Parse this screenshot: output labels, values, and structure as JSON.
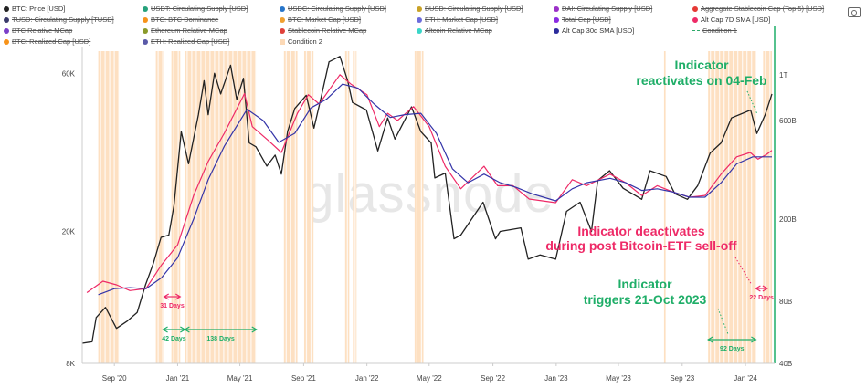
{
  "legend": [
    {
      "label": "BTC: Price [USD]",
      "color": "#222222",
      "shape": "dot",
      "active": true
    },
    {
      "label": "USDT: Circulating Supply [USD]",
      "color": "#26a17b",
      "shape": "dot",
      "active": false
    },
    {
      "label": "USDC: Circulating Supply [USD]",
      "color": "#2775ca",
      "shape": "dot",
      "active": false
    },
    {
      "label": "BUSD: Circulating Supply [USD]",
      "color": "#c9a227",
      "shape": "dot",
      "active": false
    },
    {
      "label": "DAI: Circulating Supply [USD]",
      "color": "#9b30c8",
      "shape": "dot",
      "active": false
    },
    {
      "label": "Aggregate Stablecoin Cap (Top 5) [USD]",
      "color": "#e53935",
      "shape": "dot",
      "active": false
    },
    {
      "label": "TUSD: Circulating Supply [TUSD]",
      "color": "#3a3a6a",
      "shape": "dot",
      "active": false
    },
    {
      "label": "BTC: BTC Dominance",
      "color": "#f7931a",
      "shape": "dot",
      "active": false
    },
    {
      "label": "BTC: Market Cap [USD]",
      "color": "#f0a030",
      "shape": "dot",
      "active": false
    },
    {
      "label": "ETH: Market Cap [USD]",
      "color": "#6c6cdc",
      "shape": "dot",
      "active": false
    },
    {
      "label": "Total Cap [USD]",
      "color": "#8a2be2",
      "shape": "dot",
      "active": false
    },
    {
      "label": "Alt Cap 7D SMA [USD]",
      "color": "#ee2a67",
      "shape": "dot",
      "active": true
    },
    {
      "label": "BTC Relative MCap",
      "color": "#7b3fc8",
      "shape": "dot",
      "active": false
    },
    {
      "label": "Ethereum Relative MCap",
      "color": "#8a9a2a",
      "shape": "dot",
      "active": false
    },
    {
      "label": "Stablecoin Relative MCap",
      "color": "#e0413a",
      "shape": "dot",
      "active": false
    },
    {
      "label": "Altcoin Relative MCap",
      "color": "#3ad6c8",
      "shape": "dot",
      "active": false
    },
    {
      "label": "Alt Cap 30d SMA [USD]",
      "color": "#2c2c9c",
      "shape": "dot",
      "active": true
    },
    {
      "label": "Condition 1",
      "color": "#2eaa6a",
      "shape": "dash",
      "active": false
    },
    {
      "label": "BTC: Realized Cap [USD]",
      "color": "#f7931a",
      "shape": "dot",
      "active": false
    },
    {
      "label": "ETH: Realized Cap [USD]",
      "color": "#5a5aa8",
      "shape": "dot",
      "active": false
    },
    {
      "label": "Condition 2",
      "color": "#fcd9b6",
      "shape": "square",
      "active": true
    }
  ],
  "chart_data": {
    "type": "line",
    "title": "",
    "watermark": "glassnode",
    "x_ticks": [
      "Sep '20",
      "Jan '21",
      "May '21",
      "Sep '21",
      "Jan '22",
      "May '22",
      "Sep '22",
      "Jan '23",
      "May '23",
      "Sep '23",
      "Jan '24"
    ],
    "x_range": [
      "2020-07-01",
      "2024-02-21"
    ],
    "y_left": {
      "scale": "log",
      "ticks": [
        "8K",
        "20K",
        "60K"
      ],
      "range": [
        8000,
        70000
      ]
    },
    "y_right": {
      "scale": "log",
      "ticks": [
        "40B",
        "80B",
        "200B",
        "600B",
        "1T"
      ],
      "range": [
        40,
        1300
      ],
      "unit": "B"
    },
    "series": [
      {
        "name": "BTC: Price [USD]",
        "axis": "left",
        "color": "#222222",
        "points": [
          [
            "2020-07-01",
            9200
          ],
          [
            "2020-07-20",
            9300
          ],
          [
            "2020-07-28",
            11000
          ],
          [
            "2020-08-15",
            11800
          ],
          [
            "2020-09-05",
            10200
          ],
          [
            "2020-09-25",
            10700
          ],
          [
            "2020-10-15",
            11400
          ],
          [
            "2020-10-31",
            13800
          ],
          [
            "2020-11-15",
            16000
          ],
          [
            "2020-11-30",
            19200
          ],
          [
            "2020-12-15",
            19500
          ],
          [
            "2020-12-25",
            24000
          ],
          [
            "2021-01-08",
            40000
          ],
          [
            "2021-01-22",
            32000
          ],
          [
            "2021-02-10",
            45000
          ],
          [
            "2021-02-21",
            57000
          ],
          [
            "2021-03-01",
            45000
          ],
          [
            "2021-03-13",
            60000
          ],
          [
            "2021-03-25",
            52000
          ],
          [
            "2021-04-13",
            63500
          ],
          [
            "2021-04-25",
            50000
          ],
          [
            "2021-05-08",
            58000
          ],
          [
            "2021-05-19",
            37000
          ],
          [
            "2021-06-01",
            36000
          ],
          [
            "2021-06-22",
            31500
          ],
          [
            "2021-07-08",
            34000
          ],
          [
            "2021-07-20",
            29800
          ],
          [
            "2021-08-01",
            40000
          ],
          [
            "2021-08-15",
            47000
          ],
          [
            "2021-09-06",
            51500
          ],
          [
            "2021-09-21",
            41000
          ],
          [
            "2021-10-05",
            51000
          ],
          [
            "2021-10-20",
            65000
          ],
          [
            "2021-11-10",
            67500
          ],
          [
            "2021-11-25",
            57000
          ],
          [
            "2021-12-04",
            49000
          ],
          [
            "2021-12-31",
            46500
          ],
          [
            "2022-01-22",
            35000
          ],
          [
            "2022-02-10",
            44000
          ],
          [
            "2022-02-24",
            38000
          ],
          [
            "2022-03-28",
            47500
          ],
          [
            "2022-04-15",
            40000
          ],
          [
            "2022-05-05",
            37000
          ],
          [
            "2022-05-12",
            29000
          ],
          [
            "2022-06-01",
            30000
          ],
          [
            "2022-06-18",
            19000
          ],
          [
            "2022-07-01",
            19500
          ],
          [
            "2022-08-13",
            24500
          ],
          [
            "2022-09-06",
            19000
          ],
          [
            "2022-09-15",
            20000
          ],
          [
            "2022-10-25",
            20500
          ],
          [
            "2022-11-08",
            16500
          ],
          [
            "2022-12-01",
            17000
          ],
          [
            "2022-12-31",
            16500
          ],
          [
            "2023-01-21",
            23000
          ],
          [
            "2023-02-16",
            24500
          ],
          [
            "2023-03-10",
            20000
          ],
          [
            "2023-03-22",
            28500
          ],
          [
            "2023-04-14",
            30500
          ],
          [
            "2023-05-10",
            27000
          ],
          [
            "2023-06-15",
            25000
          ],
          [
            "2023-07-01",
            30500
          ],
          [
            "2023-08-01",
            29300
          ],
          [
            "2023-08-18",
            26000
          ],
          [
            "2023-09-11",
            25000
          ],
          [
            "2023-10-01",
            27500
          ],
          [
            "2023-10-25",
            34500
          ],
          [
            "2023-11-15",
            37000
          ],
          [
            "2023-12-05",
            44000
          ],
          [
            "2024-01-11",
            46500
          ],
          [
            "2024-01-23",
            39500
          ],
          [
            "2024-02-08",
            45000
          ],
          [
            "2024-02-21",
            52000
          ]
        ]
      },
      {
        "name": "Alt Cap 7D SMA [USD]",
        "axis": "right",
        "color": "#ee2a67",
        "points": [
          [
            "2020-07-10",
            88
          ],
          [
            "2020-08-10",
            100
          ],
          [
            "2020-09-05",
            96
          ],
          [
            "2020-10-01",
            90
          ],
          [
            "2020-11-01",
            92
          ],
          [
            "2020-12-01",
            120
          ],
          [
            "2021-01-01",
            150
          ],
          [
            "2021-02-01",
            260
          ],
          [
            "2021-03-01",
            380
          ],
          [
            "2021-04-01",
            520
          ],
          [
            "2021-05-10",
            810
          ],
          [
            "2021-05-25",
            560
          ],
          [
            "2021-06-25",
            480
          ],
          [
            "2021-07-20",
            420
          ],
          [
            "2021-08-20",
            650
          ],
          [
            "2021-09-10",
            800
          ],
          [
            "2021-10-01",
            720
          ],
          [
            "2021-11-10",
            1000
          ],
          [
            "2021-12-01",
            900
          ],
          [
            "2022-01-01",
            800
          ],
          [
            "2022-01-25",
            560
          ],
          [
            "2022-02-10",
            650
          ],
          [
            "2022-03-01",
            600
          ],
          [
            "2022-04-01",
            700
          ],
          [
            "2022-05-01",
            560
          ],
          [
            "2022-06-01",
            360
          ],
          [
            "2022-07-01",
            280
          ],
          [
            "2022-08-15",
            360
          ],
          [
            "2022-09-10",
            290
          ],
          [
            "2022-10-10",
            290
          ],
          [
            "2022-11-10",
            250
          ],
          [
            "2022-12-31",
            240
          ],
          [
            "2023-02-01",
            310
          ],
          [
            "2023-03-01",
            290
          ],
          [
            "2023-04-15",
            330
          ],
          [
            "2023-05-15",
            300
          ],
          [
            "2023-06-15",
            260
          ],
          [
            "2023-07-15",
            290
          ],
          [
            "2023-08-15",
            270
          ],
          [
            "2023-09-15",
            255
          ],
          [
            "2023-10-15",
            260
          ],
          [
            "2023-11-15",
            330
          ],
          [
            "2023-12-15",
            400
          ],
          [
            "2024-01-10",
            420
          ],
          [
            "2024-01-25",
            390
          ],
          [
            "2024-02-10",
            410
          ],
          [
            "2024-02-21",
            430
          ]
        ]
      },
      {
        "name": "Alt Cap 30d SMA [USD]",
        "axis": "right",
        "color": "#3434a8",
        "points": [
          [
            "2020-08-01",
            86
          ],
          [
            "2020-09-01",
            92
          ],
          [
            "2020-10-01",
            93
          ],
          [
            "2020-11-01",
            92
          ],
          [
            "2020-12-01",
            104
          ],
          [
            "2021-01-01",
            130
          ],
          [
            "2021-02-01",
            200
          ],
          [
            "2021-03-01",
            310
          ],
          [
            "2021-04-01",
            450
          ],
          [
            "2021-05-15",
            680
          ],
          [
            "2021-06-15",
            600
          ],
          [
            "2021-07-15",
            470
          ],
          [
            "2021-08-15",
            520
          ],
          [
            "2021-09-15",
            690
          ],
          [
            "2021-10-15",
            760
          ],
          [
            "2021-11-15",
            900
          ],
          [
            "2021-12-15",
            860
          ],
          [
            "2022-01-15",
            720
          ],
          [
            "2022-02-15",
            620
          ],
          [
            "2022-03-15",
            640
          ],
          [
            "2022-04-15",
            650
          ],
          [
            "2022-05-15",
            520
          ],
          [
            "2022-06-15",
            350
          ],
          [
            "2022-07-15",
            300
          ],
          [
            "2022-08-15",
            330
          ],
          [
            "2022-09-15",
            300
          ],
          [
            "2022-10-15",
            285
          ],
          [
            "2022-11-15",
            265
          ],
          [
            "2022-12-31",
            245
          ],
          [
            "2023-02-01",
            280
          ],
          [
            "2023-03-01",
            300
          ],
          [
            "2023-04-15",
            315
          ],
          [
            "2023-05-15",
            300
          ],
          [
            "2023-06-15",
            275
          ],
          [
            "2023-07-15",
            280
          ],
          [
            "2023-08-15",
            270
          ],
          [
            "2023-09-15",
            255
          ],
          [
            "2023-10-15",
            255
          ],
          [
            "2023-11-15",
            300
          ],
          [
            "2023-12-15",
            370
          ],
          [
            "2024-01-15",
            400
          ],
          [
            "2024-02-21",
            400
          ]
        ]
      }
    ],
    "condition_2_periods": [
      [
        "2020-08-01",
        "2020-09-10"
      ],
      [
        "2020-11-20",
        "2020-12-05"
      ],
      [
        "2020-12-20",
        "2021-01-06"
      ],
      [
        "2021-01-15",
        "2021-06-01"
      ],
      [
        "2021-07-25",
        "2021-08-20"
      ],
      [
        "2021-09-02",
        "2021-09-20"
      ],
      [
        "2021-11-20",
        "2021-11-28"
      ],
      [
        "2021-12-05",
        "2021-12-12"
      ],
      [
        "2022-04-03",
        "2022-04-20"
      ],
      [
        "2023-07-28",
        "2023-07-31"
      ],
      [
        "2023-10-21",
        "2024-01-21"
      ],
      [
        "2024-02-04",
        "2024-02-21"
      ]
    ],
    "annotations": [
      {
        "id": "reactivates",
        "lines": [
          "Indicator",
          "reactivates on 04-Feb"
        ],
        "color": "green"
      },
      {
        "id": "deactivates",
        "lines": [
          "Indicator deactivates",
          "during post Bitcoin-ETF sell-off"
        ],
        "color": "red"
      },
      {
        "id": "triggers",
        "lines": [
          "Indicator",
          "triggers 21-Oct 2023"
        ],
        "color": "green"
      }
    ],
    "durations": [
      {
        "label": "31 Days",
        "color": "red",
        "from": "2020-12-06",
        "to": "2021-01-06"
      },
      {
        "label": "42 Days",
        "color": "green",
        "from": "2020-12-04",
        "to": "2021-01-15"
      },
      {
        "label": "138 Days",
        "color": "green",
        "from": "2021-01-15",
        "to": "2021-06-02"
      },
      {
        "label": "92 Days",
        "color": "green",
        "from": "2023-10-21",
        "to": "2024-01-21"
      },
      {
        "label": "22 Days",
        "color": "red",
        "from": "2024-01-21",
        "to": "2024-02-12"
      }
    ]
  }
}
